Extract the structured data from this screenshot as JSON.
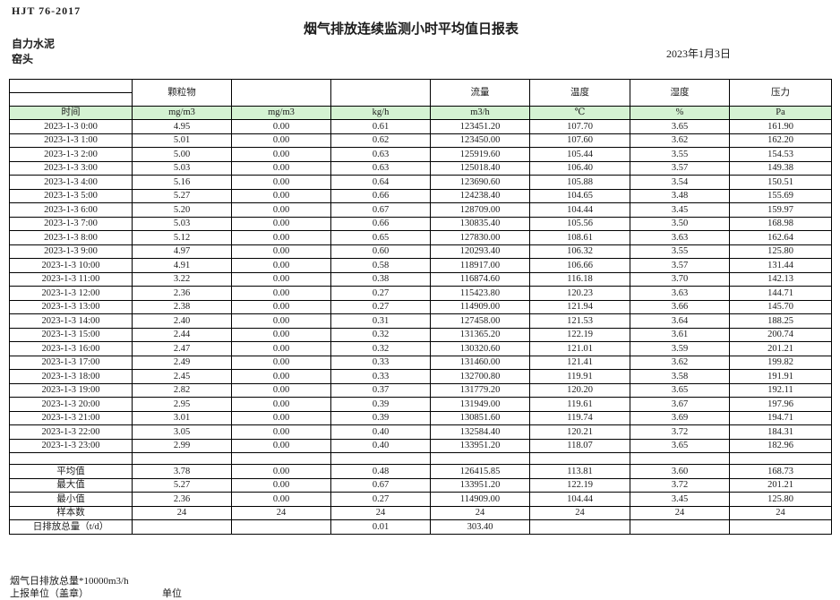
{
  "page": {
    "standard": "HJT  76-2017",
    "title": "烟气排放连续监测小时平均值日报表",
    "company": "自力水泥",
    "point": "窑头",
    "date": "2023年1月3日"
  },
  "table": {
    "group_headers": [
      "",
      "颗粒物",
      "",
      "",
      "流量",
      "温度",
      "湿度",
      "压力"
    ],
    "unit_headers": [
      "时间",
      "mg/m3",
      "mg/m3",
      "kg/h",
      "m3/h",
      "℃",
      "%",
      "Pa"
    ],
    "rows": [
      [
        "2023-1-3 0:00",
        "4.95",
        "0.00",
        "0.61",
        "123451.20",
        "107.70",
        "3.65",
        "161.90"
      ],
      [
        "2023-1-3 1:00",
        "5.01",
        "0.00",
        "0.62",
        "123450.00",
        "107.60",
        "3.62",
        "162.20"
      ],
      [
        "2023-1-3 2:00",
        "5.00",
        "0.00",
        "0.63",
        "125919.60",
        "105.44",
        "3.55",
        "154.53"
      ],
      [
        "2023-1-3 3:00",
        "5.03",
        "0.00",
        "0.63",
        "125018.40",
        "106.40",
        "3.57",
        "149.38"
      ],
      [
        "2023-1-3 4:00",
        "5.16",
        "0.00",
        "0.64",
        "123690.60",
        "105.88",
        "3.54",
        "150.51"
      ],
      [
        "2023-1-3 5:00",
        "5.27",
        "0.00",
        "0.66",
        "124238.40",
        "104.65",
        "3.48",
        "155.69"
      ],
      [
        "2023-1-3 6:00",
        "5.20",
        "0.00",
        "0.67",
        "128709.00",
        "104.44",
        "3.45",
        "159.97"
      ],
      [
        "2023-1-3 7:00",
        "5.03",
        "0.00",
        "0.66",
        "130835.40",
        "105.56",
        "3.50",
        "168.98"
      ],
      [
        "2023-1-3 8:00",
        "5.12",
        "0.00",
        "0.65",
        "127830.00",
        "108.61",
        "3.63",
        "162.64"
      ],
      [
        "2023-1-3 9:00",
        "4.97",
        "0.00",
        "0.60",
        "120293.40",
        "106.32",
        "3.55",
        "125.80"
      ],
      [
        "2023-1-3 10:00",
        "4.91",
        "0.00",
        "0.58",
        "118917.00",
        "106.66",
        "3.57",
        "131.44"
      ],
      [
        "2023-1-3 11:00",
        "3.22",
        "0.00",
        "0.38",
        "116874.60",
        "116.18",
        "3.70",
        "142.13"
      ],
      [
        "2023-1-3 12:00",
        "2.36",
        "0.00",
        "0.27",
        "115423.80",
        "120.23",
        "3.63",
        "144.71"
      ],
      [
        "2023-1-3 13:00",
        "2.38",
        "0.00",
        "0.27",
        "114909.00",
        "121.94",
        "3.66",
        "145.70"
      ],
      [
        "2023-1-3 14:00",
        "2.40",
        "0.00",
        "0.31",
        "127458.00",
        "121.53",
        "3.64",
        "188.25"
      ],
      [
        "2023-1-3 15:00",
        "2.44",
        "0.00",
        "0.32",
        "131365.20",
        "122.19",
        "3.61",
        "200.74"
      ],
      [
        "2023-1-3 16:00",
        "2.47",
        "0.00",
        "0.32",
        "130320.60",
        "121.01",
        "3.59",
        "201.21"
      ],
      [
        "2023-1-3 17:00",
        "2.49",
        "0.00",
        "0.33",
        "131460.00",
        "121.41",
        "3.62",
        "199.82"
      ],
      [
        "2023-1-3 18:00",
        "2.45",
        "0.00",
        "0.33",
        "132700.80",
        "119.91",
        "3.58",
        "191.91"
      ],
      [
        "2023-1-3 19:00",
        "2.82",
        "0.00",
        "0.37",
        "131779.20",
        "120.20",
        "3.65",
        "192.11"
      ],
      [
        "2023-1-3 20:00",
        "2.95",
        "0.00",
        "0.39",
        "131949.00",
        "119.61",
        "3.67",
        "197.96"
      ],
      [
        "2023-1-3 21:00",
        "3.01",
        "0.00",
        "0.39",
        "130851.60",
        "119.74",
        "3.69",
        "194.71"
      ],
      [
        "2023-1-3 22:00",
        "3.05",
        "0.00",
        "0.40",
        "132584.40",
        "120.21",
        "3.72",
        "184.31"
      ],
      [
        "2023-1-3 23:00",
        "2.99",
        "0.00",
        "0.40",
        "133951.20",
        "118.07",
        "3.65",
        "182.96"
      ]
    ],
    "summary": [
      [
        "平均值",
        "3.78",
        "0.00",
        "0.48",
        "126415.85",
        "113.81",
        "3.60",
        "168.73"
      ],
      [
        "最大值",
        "5.27",
        "0.00",
        "0.67",
        "133951.20",
        "122.19",
        "3.72",
        "201.21"
      ],
      [
        "最小值",
        "2.36",
        "0.00",
        "0.27",
        "114909.00",
        "104.44",
        "3.45",
        "125.80"
      ],
      [
        "样本数",
        "24",
        "24",
        "24",
        "24",
        "24",
        "24",
        "24"
      ],
      [
        "日排放总量（t/d）",
        "",
        "",
        "0.01",
        "303.40",
        "",
        "",
        ""
      ]
    ]
  },
  "footer": {
    "total_note": "烟气日排放总量*10000m3/h",
    "report_unit_label": "上报单位（盖章）",
    "unit_label": "单位"
  },
  "colors": {
    "header_green": "#d4f2d2",
    "border": "#000000"
  }
}
